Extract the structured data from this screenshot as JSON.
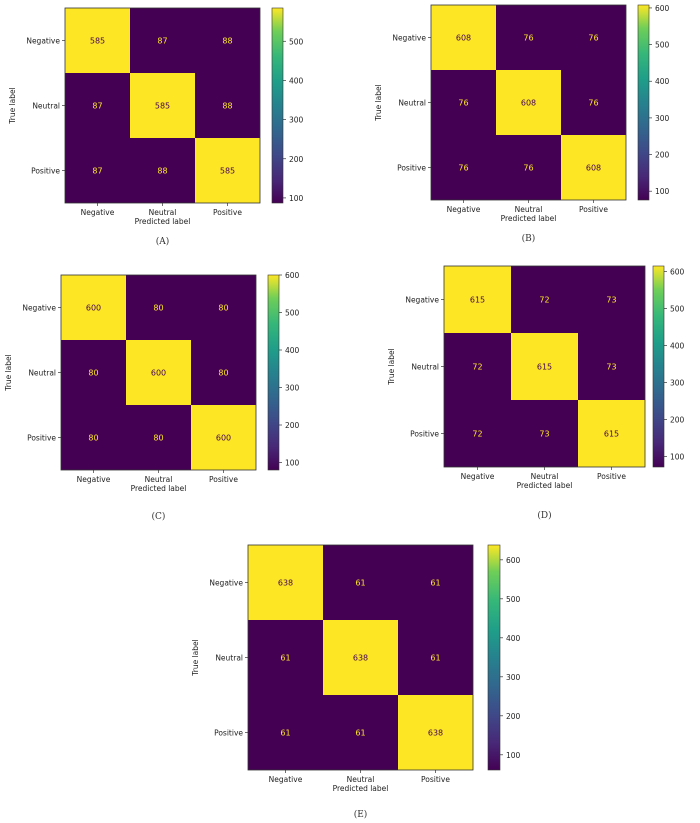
{
  "chart_data": [
    {
      "type": "heatmap",
      "caption": "(A)",
      "rows": [
        "Negative",
        "Neutral",
        "Positive"
      ],
      "cols": [
        "Negative",
        "Neutral",
        "Positive"
      ],
      "values": [
        [
          585,
          87,
          88
        ],
        [
          87,
          585,
          88
        ],
        [
          87,
          88,
          585
        ]
      ],
      "xlabel": "Predicted label",
      "ylabel": "True label",
      "colorbar_range": [
        87,
        585
      ],
      "colorbar_ticks": [
        100,
        200,
        300,
        400,
        500
      ]
    },
    {
      "type": "heatmap",
      "caption": "(B)",
      "rows": [
        "Negative",
        "Neutral",
        "Positive"
      ],
      "cols": [
        "Negative",
        "Neutral",
        "Positive"
      ],
      "values": [
        [
          608,
          76,
          76
        ],
        [
          76,
          608,
          76
        ],
        [
          76,
          76,
          608
        ]
      ],
      "xlabel": "Predicted label",
      "ylabel": "True label",
      "colorbar_range": [
        76,
        608
      ],
      "colorbar_ticks": [
        100,
        200,
        300,
        400,
        500,
        600
      ]
    },
    {
      "type": "heatmap",
      "caption": "(C)",
      "rows": [
        "Negative",
        "Neutral",
        "Positive"
      ],
      "cols": [
        "Negative",
        "Neutral",
        "Positive"
      ],
      "values": [
        [
          600,
          80,
          80
        ],
        [
          80,
          600,
          80
        ],
        [
          80,
          80,
          600
        ]
      ],
      "xlabel": "Predicted label",
      "ylabel": "True label",
      "colorbar_range": [
        80,
        600
      ],
      "colorbar_ticks": [
        100,
        200,
        300,
        400,
        500,
        600
      ]
    },
    {
      "type": "heatmap",
      "caption": "(D)",
      "rows": [
        "Negative",
        "Neutral",
        "Positive"
      ],
      "cols": [
        "Negative",
        "Neutral",
        "Positive"
      ],
      "values": [
        [
          615,
          72,
          73
        ],
        [
          72,
          615,
          73
        ],
        [
          72,
          73,
          615
        ]
      ],
      "xlabel": "Predicted label",
      "ylabel": "True label",
      "colorbar_range": [
        72,
        615
      ],
      "colorbar_ticks": [
        100,
        200,
        300,
        400,
        500,
        600
      ]
    },
    {
      "type": "heatmap",
      "caption": "(E)",
      "rows": [
        "Negative",
        "Neutral",
        "Positive"
      ],
      "cols": [
        "Negative",
        "Neutral",
        "Positive"
      ],
      "values": [
        [
          638,
          61,
          61
        ],
        [
          61,
          638,
          61
        ],
        [
          61,
          61,
          638
        ]
      ],
      "xlabel": "Predicted label",
      "ylabel": "True label",
      "colorbar_range": [
        61,
        638
      ],
      "colorbar_ticks": [
        100,
        200,
        300,
        400,
        500,
        600
      ]
    }
  ],
  "colors": {
    "low": "#440154",
    "high": "#fde725",
    "text_on_low": "#fde725",
    "text_on_high": "#440154",
    "colormap": "viridis"
  }
}
